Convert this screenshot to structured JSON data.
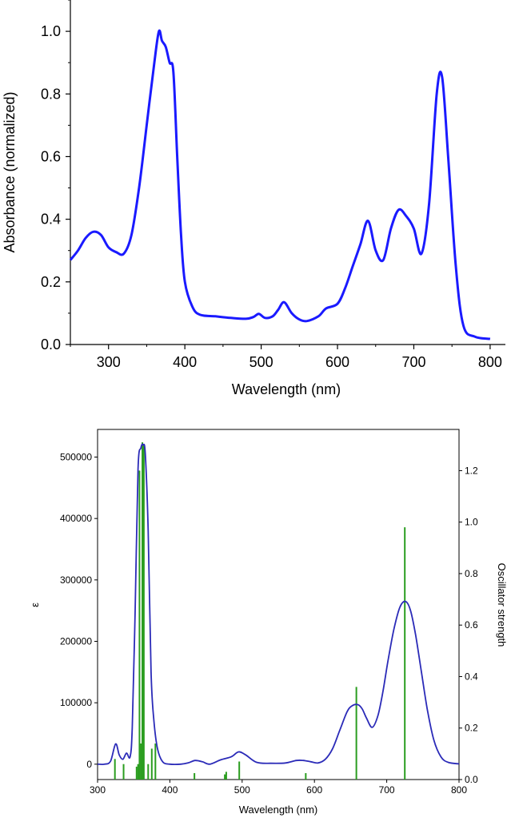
{
  "chart_data": [
    {
      "type": "line",
      "xlabel": "Wavelength (nm)",
      "ylabel": "Absorbance (normalized)",
      "xlim": [
        250,
        820
      ],
      "ylim": [
        0,
        1.1
      ],
      "xticks": [
        "300",
        "400",
        "500",
        "600",
        "700",
        "800"
      ],
      "yticks": [
        "0.0",
        "0.2",
        "0.4",
        "0.6",
        "0.8",
        "1.0"
      ],
      "series_color": "#1a1aff",
      "series": [
        {
          "x": [
            250,
            260,
            270,
            280,
            290,
            300,
            310,
            320,
            330,
            340,
            350,
            360,
            366,
            370,
            375,
            380,
            385,
            390,
            395,
            400,
            410,
            420,
            440,
            460,
            480,
            490,
            497,
            505,
            515,
            522,
            530,
            540,
            550,
            560,
            575,
            585,
            600,
            610,
            620,
            630,
            640,
            650,
            660,
            670,
            680,
            690,
            700,
            710,
            720,
            730,
            737,
            745,
            755,
            765,
            780,
            800
          ],
          "y": [
            0.27,
            0.3,
            0.34,
            0.36,
            0.35,
            0.31,
            0.295,
            0.29,
            0.35,
            0.5,
            0.7,
            0.9,
            1.0,
            0.97,
            0.95,
            0.9,
            0.87,
            0.6,
            0.35,
            0.2,
            0.12,
            0.095,
            0.09,
            0.085,
            0.082,
            0.088,
            0.098,
            0.085,
            0.09,
            0.11,
            0.135,
            0.1,
            0.08,
            0.075,
            0.09,
            0.115,
            0.13,
            0.18,
            0.25,
            0.32,
            0.395,
            0.3,
            0.27,
            0.37,
            0.43,
            0.41,
            0.37,
            0.29,
            0.45,
            0.8,
            0.855,
            0.6,
            0.25,
            0.06,
            0.025,
            0.018
          ]
        }
      ]
    },
    {
      "type": "line",
      "xlabel": "Wavelength (nm)",
      "ylabel": "ε",
      "y2label": "Oscillator strength",
      "xlim": [
        300,
        800
      ],
      "ylim": [
        -25000,
        545000
      ],
      "y2lim": [
        0,
        1.36
      ],
      "xticks": [
        "300",
        "400",
        "500",
        "600",
        "700",
        "800"
      ],
      "yticks": [
        "0",
        "100000",
        "200000",
        "300000",
        "400000",
        "500000"
      ],
      "y2ticks": [
        "0.0",
        "0.2",
        "0.4",
        "0.6",
        "0.8",
        "1.0",
        "1.2"
      ],
      "series_color": "#2b2bb8",
      "stick_color": "#2a9d1f",
      "series": [
        {
          "x": [
            300,
            310,
            318,
            325,
            330,
            335,
            340,
            345,
            348,
            352,
            356,
            360,
            363,
            366,
            370,
            374,
            378,
            383,
            390,
            400,
            415,
            425,
            435,
            445,
            455,
            470,
            485,
            495,
            505,
            520,
            540,
            560,
            575,
            585,
            595,
            605,
            615,
            625,
            635,
            645,
            652,
            660,
            666,
            672,
            680,
            688,
            695,
            702,
            710,
            718,
            726,
            733,
            740,
            748,
            756,
            765,
            775,
            785,
            800
          ],
          "y": [
            0,
            0,
            5000,
            33000,
            15000,
            8000,
            18000,
            12000,
            60000,
            250000,
            480000,
            515000,
            520000,
            505000,
            380000,
            150000,
            70000,
            25000,
            4000,
            0,
            0,
            2000,
            6000,
            4000,
            0,
            7000,
            12000,
            20000,
            15000,
            3000,
            1500,
            2000,
            6000,
            6000,
            4000,
            2000,
            8000,
            25000,
            55000,
            85000,
            95000,
            97000,
            90000,
            75000,
            60000,
            80000,
            120000,
            170000,
            220000,
            255000,
            265000,
            250000,
            210000,
            150000,
            90000,
            40000,
            12000,
            3000,
            500
          ]
        }
      ],
      "sticks": [
        {
          "x": 324,
          "f": 0.08
        },
        {
          "x": 336,
          "f": 0.06
        },
        {
          "x": 354,
          "f": 0.05
        },
        {
          "x": 356,
          "f": 0.06
        },
        {
          "x": 358,
          "f": 1.2
        },
        {
          "x": 360,
          "f": 0.14
        },
        {
          "x": 362,
          "f": 1.31
        },
        {
          "x": 364,
          "f": 1.3
        },
        {
          "x": 370,
          "f": 0.06
        },
        {
          "x": 375,
          "f": 0.12
        },
        {
          "x": 380,
          "f": 0.14
        },
        {
          "x": 434,
          "f": 0.025
        },
        {
          "x": 476,
          "f": 0.02
        },
        {
          "x": 478,
          "f": 0.03
        },
        {
          "x": 496,
          "f": 0.07
        },
        {
          "x": 588,
          "f": 0.025
        },
        {
          "x": 658,
          "f": 0.36
        },
        {
          "x": 725,
          "f": 0.98
        }
      ]
    }
  ]
}
